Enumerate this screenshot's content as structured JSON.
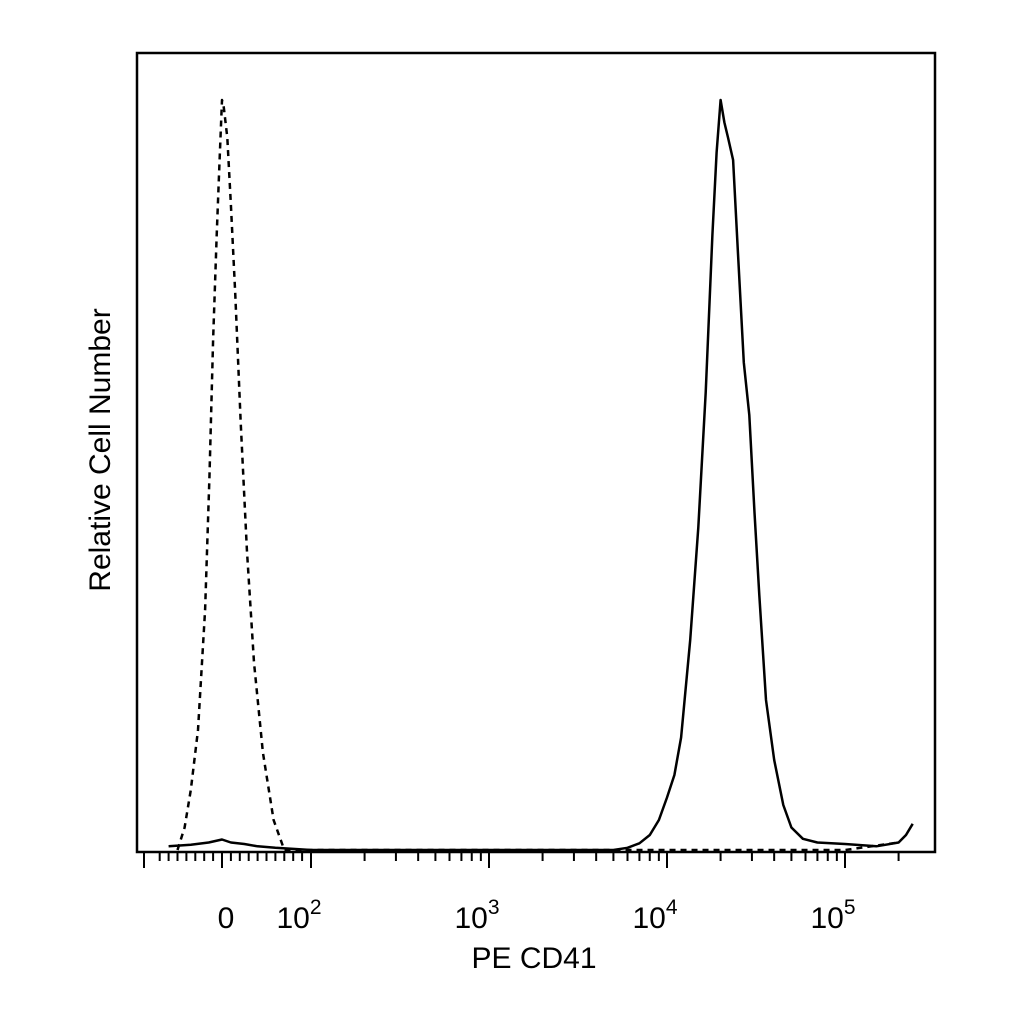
{
  "chart_data": {
    "type": "line",
    "title": "",
    "xlabel": "PE CD41",
    "ylabel": "Relative Cell Number",
    "x_scale": "biexponential",
    "xlim": [
      -60,
      250000
    ],
    "ylim": [
      0,
      1.0
    ],
    "grid": false,
    "x_ticks": [
      {
        "label": "0",
        "value": 0
      },
      {
        "label": "10",
        "exp": "2",
        "value": 100
      },
      {
        "label": "10",
        "exp": "3",
        "value": 1000
      },
      {
        "label": "10",
        "exp": "4",
        "value": 10000
      },
      {
        "label": "10",
        "exp": "5",
        "value": 100000
      }
    ],
    "series": [
      {
        "style": "dashed",
        "x": [
          -50,
          -42,
          -35,
          -27,
          -19,
          -14,
          -10,
          -6,
          -3,
          -1,
          0,
          2,
          6,
          10,
          15,
          21,
          28,
          36,
          46,
          58,
          70,
          90,
          110,
          140,
          200,
          1000,
          10000,
          100000,
          200000
        ],
        "y": [
          0.0,
          0.03,
          0.08,
          0.16,
          0.32,
          0.5,
          0.68,
          0.82,
          0.91,
          0.97,
          1.0,
          0.99,
          0.95,
          0.86,
          0.74,
          0.57,
          0.4,
          0.25,
          0.13,
          0.04,
          0.0,
          0.0,
          0.0,
          0.0,
          0.0,
          0.0,
          0.0,
          0.0,
          0.01
        ]
      },
      {
        "style": "solid",
        "x": [
          -60,
          -35,
          -15,
          0,
          10,
          25,
          40,
          60,
          100,
          1000,
          5000,
          6000,
          7000,
          8000,
          9000,
          10000,
          11000,
          12000,
          13500,
          15000,
          16500,
          18000,
          19000,
          20000,
          21000,
          22000,
          23500,
          25000,
          27000,
          29000,
          31000,
          33000,
          36000,
          40000,
          45000,
          50000,
          58000,
          70000,
          100000,
          150000,
          200000,
          220000,
          240000
        ],
        "y": [
          0.005,
          0.007,
          0.01,
          0.014,
          0.01,
          0.008,
          0.005,
          0.003,
          0.0,
          0.0,
          0.0,
          0.003,
          0.009,
          0.02,
          0.04,
          0.07,
          0.1,
          0.15,
          0.28,
          0.43,
          0.61,
          0.82,
          0.93,
          1.0,
          0.97,
          0.95,
          0.92,
          0.8,
          0.65,
          0.58,
          0.45,
          0.34,
          0.2,
          0.12,
          0.06,
          0.03,
          0.015,
          0.01,
          0.008,
          0.005,
          0.01,
          0.02,
          0.035
        ]
      }
    ]
  }
}
